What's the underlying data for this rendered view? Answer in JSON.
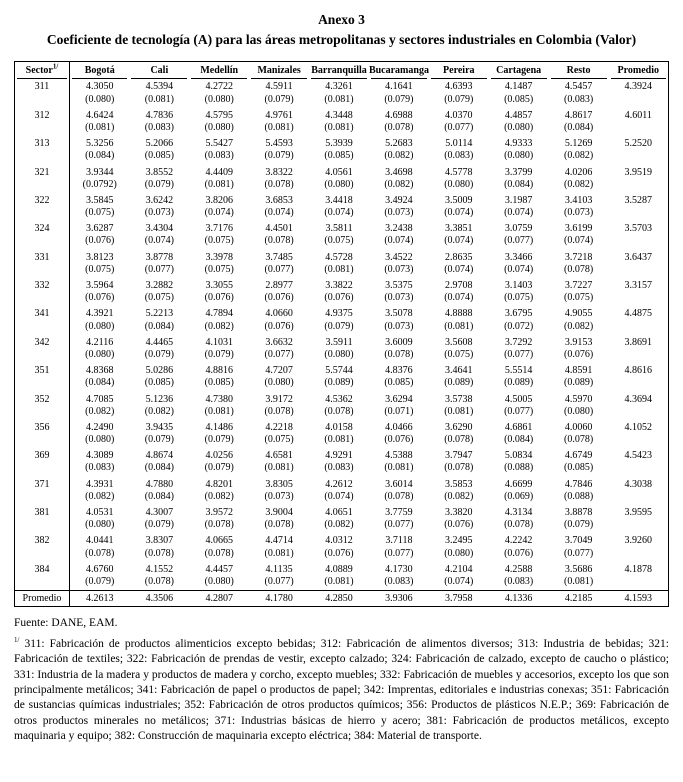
{
  "colors": {
    "text": "#000000",
    "background": "#ffffff",
    "border": "#000000"
  },
  "title": {
    "annex": "Anexo 3",
    "subtitle": "Coeficiente de tecnología (A) para las áreas metropolitanas y sectores industriales en Colombia (Valor)"
  },
  "table": {
    "headers": [
      "Sector",
      "Bogotá",
      "Cali",
      "Medellín",
      "Manizales",
      "Barranquilla",
      "Bucaramanga",
      "Pereira",
      "Cartagena",
      "Resto",
      "Promedio"
    ],
    "sector_note_marker": "1/",
    "rows": [
      {
        "sector": "311",
        "cells": [
          [
            "4.3050",
            "(0.080)"
          ],
          [
            "4.5394",
            "(0.081)"
          ],
          [
            "4.2722",
            "(0.080)"
          ],
          [
            "4.5911",
            "(0.079)"
          ],
          [
            "4.3261",
            "(0.081)"
          ],
          [
            "4.1641",
            "(0.079)"
          ],
          [
            "4.6393",
            "(0.079)"
          ],
          [
            "4.1487",
            "(0.085)"
          ],
          [
            "4.5457",
            "(0.083)"
          ]
        ],
        "promedio": "4.3924"
      },
      {
        "sector": "312",
        "cells": [
          [
            "4.6424",
            "(0.081)"
          ],
          [
            "4.7836",
            "(0.083)"
          ],
          [
            "4.5795",
            "(0.080)"
          ],
          [
            "4.9761",
            "(0.081)"
          ],
          [
            "4.3448",
            "(0.081)"
          ],
          [
            "4.6988",
            "(0.078)"
          ],
          [
            "4.0370",
            "(0.077)"
          ],
          [
            "4.4857",
            "(0.080)"
          ],
          [
            "4.8617",
            "(0.084)"
          ]
        ],
        "promedio": "4.6011"
      },
      {
        "sector": "313",
        "cells": [
          [
            "5.3256",
            "(0.084)"
          ],
          [
            "5.2066",
            "(0.085)"
          ],
          [
            "5.5427",
            "(0.083)"
          ],
          [
            "5.4593",
            "(0.079)"
          ],
          [
            "5.3939",
            "(0.085)"
          ],
          [
            "5.2683",
            "(0.082)"
          ],
          [
            "5.0114",
            "(0.083)"
          ],
          [
            "4.9333",
            "(0.080)"
          ],
          [
            "5.1269",
            "(0.082)"
          ]
        ],
        "promedio": "5.2520"
      },
      {
        "sector": "321",
        "cells": [
          [
            "3.9344",
            "(0.0792)"
          ],
          [
            "3.8552",
            "(0.079)"
          ],
          [
            "4.4409",
            "(0.081)"
          ],
          [
            "3.8322",
            "(0.078)"
          ],
          [
            "4.0561",
            "(0.080)"
          ],
          [
            "3.4698",
            "(0.082)"
          ],
          [
            "4.5778",
            "(0.080)"
          ],
          [
            "3.3799",
            "(0.084)"
          ],
          [
            "4.0206",
            "(0.082)"
          ]
        ],
        "promedio": "3.9519"
      },
      {
        "sector": "322",
        "cells": [
          [
            "3.5845",
            "(0.075)"
          ],
          [
            "3.6242",
            "(0.073)"
          ],
          [
            "3.8206",
            "(0.074)"
          ],
          [
            "3.6853",
            "(0.074)"
          ],
          [
            "3.4418",
            "(0.074)"
          ],
          [
            "3.4924",
            "(0.073)"
          ],
          [
            "3.5009",
            "(0.074)"
          ],
          [
            "3.1987",
            "(0.074)"
          ],
          [
            "3.4103",
            "(0.073)"
          ]
        ],
        "promedio": "3.5287"
      },
      {
        "sector": "324",
        "cells": [
          [
            "3.6287",
            "(0.076)"
          ],
          [
            "3.4304",
            "(0.074)"
          ],
          [
            "3.7176",
            "(0.075)"
          ],
          [
            "4.4501",
            "(0.078)"
          ],
          [
            "3.5811",
            "(0.075)"
          ],
          [
            "3.2438",
            "(0.074)"
          ],
          [
            "3.3851",
            "(0.074)"
          ],
          [
            "3.0759",
            "(0.077)"
          ],
          [
            "3.6199",
            "(0.074)"
          ]
        ],
        "promedio": "3.5703"
      },
      {
        "sector": "331",
        "cells": [
          [
            "3.8123",
            "(0.075)"
          ],
          [
            "3.8778",
            "(0.077)"
          ],
          [
            "3.3978",
            "(0.075)"
          ],
          [
            "3.7485",
            "(0.077)"
          ],
          [
            "4.5728",
            "(0.081)"
          ],
          [
            "3.4522",
            "(0.073)"
          ],
          [
            "2.8635",
            "(0.074)"
          ],
          [
            "3.3466",
            "(0.074)"
          ],
          [
            "3.7218",
            "(0.078)"
          ]
        ],
        "promedio": "3.6437"
      },
      {
        "sector": "332",
        "cells": [
          [
            "3.5964",
            "(0.076)"
          ],
          [
            "3.2882",
            "(0.075)"
          ],
          [
            "3.3055",
            "(0.076)"
          ],
          [
            "2.8977",
            "(0.076)"
          ],
          [
            "3.3822",
            "(0.076)"
          ],
          [
            "3.5375",
            "(0.073)"
          ],
          [
            "2.9708",
            "(0.074)"
          ],
          [
            "3.1403",
            "(0.075)"
          ],
          [
            "3.7227",
            "(0.075)"
          ]
        ],
        "promedio": "3.3157"
      },
      {
        "sector": "341",
        "cells": [
          [
            "4.3921",
            "(0.080)"
          ],
          [
            "5.2213",
            "(0.084)"
          ],
          [
            "4.7894",
            "(0.082)"
          ],
          [
            "4.0660",
            "(0.076)"
          ],
          [
            "4.9375",
            "(0.079)"
          ],
          [
            "3.5078",
            "(0.073)"
          ],
          [
            "4.8888",
            "(0.081)"
          ],
          [
            "3.6795",
            "(0.072)"
          ],
          [
            "4.9055",
            "(0.082)"
          ]
        ],
        "promedio": "4.4875"
      },
      {
        "sector": "342",
        "cells": [
          [
            "4.2116",
            "(0.080)"
          ],
          [
            "4.4465",
            "(0.079)"
          ],
          [
            "4.1031",
            "(0.079)"
          ],
          [
            "3.6632",
            "(0.077)"
          ],
          [
            "3.5911",
            "(0.080)"
          ],
          [
            "3.6009",
            "(0.078)"
          ],
          [
            "3.5608",
            "(0.075)"
          ],
          [
            "3.7292",
            "(0.077)"
          ],
          [
            "3.9153",
            "(0.076)"
          ]
        ],
        "promedio": "3.8691"
      },
      {
        "sector": "351",
        "cells": [
          [
            "4.8368",
            "(0.084)"
          ],
          [
            "5.0286",
            "(0.085)"
          ],
          [
            "4.8816",
            "(0.085)"
          ],
          [
            "4.7207",
            "(0.080)"
          ],
          [
            "5.5744",
            "(0.089)"
          ],
          [
            "4.8376",
            "(0.085)"
          ],
          [
            "3.4641",
            "(0.089)"
          ],
          [
            "5.5514",
            "(0.089)"
          ],
          [
            "4.8591",
            "(0.089)"
          ]
        ],
        "promedio": "4.8616"
      },
      {
        "sector": "352",
        "cells": [
          [
            "4.7085",
            "(0.082)"
          ],
          [
            "5.1236",
            "(0.082)"
          ],
          [
            "4.7380",
            "(0.081)"
          ],
          [
            "3.9172",
            "(0.078)"
          ],
          [
            "4.5362",
            "(0.078)"
          ],
          [
            "3.6294",
            "(0.071)"
          ],
          [
            "3.5738",
            "(0.081)"
          ],
          [
            "4.5005",
            "(0.077)"
          ],
          [
            "4.5970",
            "(0.080)"
          ]
        ],
        "promedio": "4.3694"
      },
      {
        "sector": "356",
        "cells": [
          [
            "4.2490",
            "(0.080)"
          ],
          [
            "3.9435",
            "(0.079)"
          ],
          [
            "4.1486",
            "(0.079)"
          ],
          [
            "4.2218",
            "(0.075)"
          ],
          [
            "4.0158",
            "(0.081)"
          ],
          [
            "4.0466",
            "(0.076)"
          ],
          [
            "3.6290",
            "(0.078)"
          ],
          [
            "4.6861",
            "(0.084)"
          ],
          [
            "4.0060",
            "(0.078)"
          ]
        ],
        "promedio": "4.1052"
      },
      {
        "sector": "369",
        "cells": [
          [
            "4.3089",
            "(0.083)"
          ],
          [
            "4.8674",
            "(0.084)"
          ],
          [
            "4.0256",
            "(0.079)"
          ],
          [
            "4.6581",
            "(0.081)"
          ],
          [
            "4.9291",
            "(0.083)"
          ],
          [
            "4.5388",
            "(0.081)"
          ],
          [
            "3.7947",
            "(0.078)"
          ],
          [
            "5.0834",
            "(0.088)"
          ],
          [
            "4.6749",
            "(0.085)"
          ]
        ],
        "promedio": "4.5423"
      },
      {
        "sector": "371",
        "cells": [
          [
            "4.3931",
            "(0.082)"
          ],
          [
            "4.7880",
            "(0.084)"
          ],
          [
            "4.8201",
            "(0.082)"
          ],
          [
            "3.8305",
            "(0.073)"
          ],
          [
            "4.2612",
            "(0.074)"
          ],
          [
            "3.6014",
            "(0.078)"
          ],
          [
            "3.5853",
            "(0.082)"
          ],
          [
            "4.6699",
            "(0.069)"
          ],
          [
            "4.7846",
            "(0.088)"
          ]
        ],
        "promedio": "4.3038"
      },
      {
        "sector": "381",
        "cells": [
          [
            "4.0531",
            "(0.080)"
          ],
          [
            "4.3007",
            "(0.079)"
          ],
          [
            "3.9572",
            "(0.078)"
          ],
          [
            "3.9004",
            "(0.078)"
          ],
          [
            "4.0651",
            "(0.082)"
          ],
          [
            "3.7759",
            "(0.077)"
          ],
          [
            "3.3820",
            "(0.076)"
          ],
          [
            "4.3134",
            "(0.078)"
          ],
          [
            "3.8878",
            "(0.079)"
          ]
        ],
        "promedio": "3.9595"
      },
      {
        "sector": "382",
        "cells": [
          [
            "4.0441",
            "(0.078)"
          ],
          [
            "3.8307",
            "(0.078)"
          ],
          [
            "4.0665",
            "(0.078)"
          ],
          [
            "4.4714",
            "(0.081)"
          ],
          [
            "4.0312",
            "(0.076)"
          ],
          [
            "3.7118",
            "(0.077)"
          ],
          [
            "3.2495",
            "(0.080)"
          ],
          [
            "4.2242",
            "(0.076)"
          ],
          [
            "3.7049",
            "(0.077)"
          ]
        ],
        "promedio": "3.9260"
      },
      {
        "sector": "384",
        "cells": [
          [
            "4.6760",
            "(0.079)"
          ],
          [
            "4.1552",
            "(0.078)"
          ],
          [
            "4.4457",
            "(0.080)"
          ],
          [
            "4.1135",
            "(0.077)"
          ],
          [
            "4.0889",
            "(0.081)"
          ],
          [
            "4.1730",
            "(0.083)"
          ],
          [
            "4.2104",
            "(0.074)"
          ],
          [
            "4.2588",
            "(0.083)"
          ],
          [
            "3.5686",
            "(0.081)"
          ]
        ],
        "promedio": "4.1878"
      }
    ],
    "footer": {
      "label": "Promedio",
      "values": [
        "4.2613",
        "4.3506",
        "4.2807",
        "4.1780",
        "4.2850",
        "3.9306",
        "3.7958",
        "4.1336",
        "4.2185",
        "4.1593"
      ]
    }
  },
  "source": "Fuente: DANE, EAM.",
  "footnote_marker": "1/",
  "footnote": "311: Fabricación de productos alimenticios excepto bebidas; 312: Fabricación de alimentos diversos; 313: Industria de bebidas; 321: Fabricación de textiles; 322: Fabricación de prendas de vestir, excepto calzado; 324: Fabricación de calzado, excepto de caucho o plástico; 331: Industria de la madera y productos de madera y corcho, excepto muebles; 332: Fabricación de muebles y accesorios, excepto los que son principalmente metálicos; 341: Fabricación de papel o productos de papel;  342: Imprentas, editoriales e industrias conexas; 351: Fabricación de sustancias químicas industriales; 352: Fabricación de otros productos químicos; 356: Productos de plásticos N.E.P.; 369: Fabricación de otros productos minerales no metálicos; 371:  Industrias básicas de hierro y acero; 381: Fabricación de productos metálicos, excepto maquinaria y equipo; 382: Construcción de maquinaria excepto eléctrica; 384: Material de transporte."
}
